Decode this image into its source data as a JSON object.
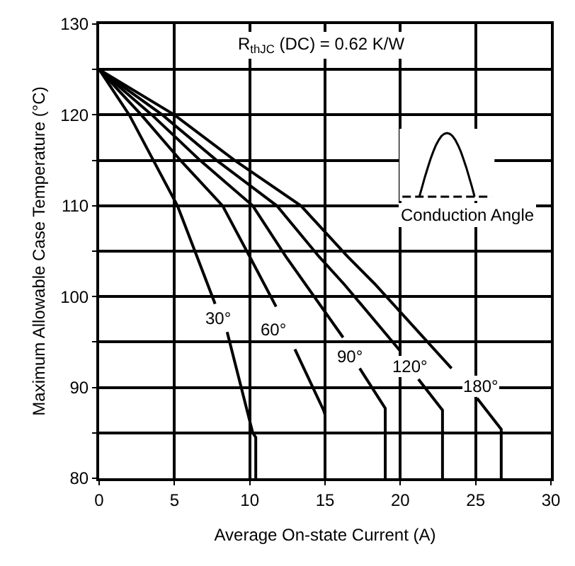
{
  "chart_data": {
    "type": "line",
    "xlabel": "Average On-state Current (A)",
    "ylabel": "Maximum Allowable Case Temperature (°C)",
    "xlim": [
      0,
      30
    ],
    "xticks": [
      0,
      5,
      10,
      15,
      20,
      25,
      30
    ],
    "ylim": [
      80,
      130
    ],
    "yticks": [
      80,
      {
        "value": 85,
        "label": null
      },
      90,
      {
        "value": 95,
        "label": null
      },
      100,
      {
        "value": 105,
        "label": null
      },
      110,
      {
        "value": 115,
        "label": null
      },
      120,
      {
        "value": 125,
        "label": null
      },
      130
    ],
    "grid": true,
    "marker": "none",
    "line_style": "solid",
    "series": [
      {
        "color": "#000000",
        "x": [
          0,
          2.0,
          3.6,
          5.2,
          6.5,
          7.7,
          7.9,
          8.5,
          10.2,
          10.4,
          10.4
        ],
        "values": [
          125,
          120,
          115,
          110,
          104.4,
          99.2,
          null,
          96.1,
          85,
          84.5,
          80
        ]
      },
      {
        "color": "#000000",
        "x": [
          0,
          2.8,
          5.4,
          8.2,
          10.0,
          11.75,
          12.3,
          13.0,
          14.9,
          15.0,
          15.0
        ],
        "values": [
          125,
          120,
          115,
          110,
          104.4,
          98.9,
          null,
          94.2,
          87.5,
          87,
          80
        ]
      },
      {
        "color": "#000000",
        "x": [
          0,
          3.5,
          6.7,
          10.2,
          12.4,
          16.2,
          16.7,
          17.3,
          19.0,
          19.0
        ],
        "values": [
          125,
          120,
          115,
          110,
          104.4,
          95.5,
          null,
          92.1,
          87.7,
          80
        ]
      },
      {
        "color": "#000000",
        "x": [
          0,
          4.2,
          7.8,
          11.8,
          14.6,
          16.3,
          20.0,
          20.5,
          21.2,
          22.8,
          22.8
        ],
        "values": [
          125,
          120,
          115,
          110,
          104.4,
          101.3,
          94.0,
          null,
          90.9,
          87.5,
          80
        ]
      },
      {
        "color": "#000000",
        "x": [
          0,
          5.0,
          9.0,
          13.4,
          16.5,
          18.3,
          23.4,
          24.2,
          25.1,
          26.7,
          26.7
        ],
        "values": [
          125,
          120,
          115,
          110,
          104.4,
          101.4,
          92.1,
          null,
          88.8,
          85.4,
          80
        ]
      }
    ],
    "annotations": [
      "R$_{thJC}$ (DC) = 0.62 K/W",
      "Conduction Angle",
      {
        "text": "30°",
        "x": 7.9,
        "y": 97.6
      },
      {
        "text": "60°",
        "x": 11.6,
        "y": 96.4
      },
      {
        "text": "90°",
        "x": 16.6,
        "y": 93.4
      },
      {
        "text": "120°",
        "x": 20.6,
        "y": 92.3
      },
      {
        "text": "180°",
        "x": 25.3,
        "y": 90.1
      }
    ]
  }
}
